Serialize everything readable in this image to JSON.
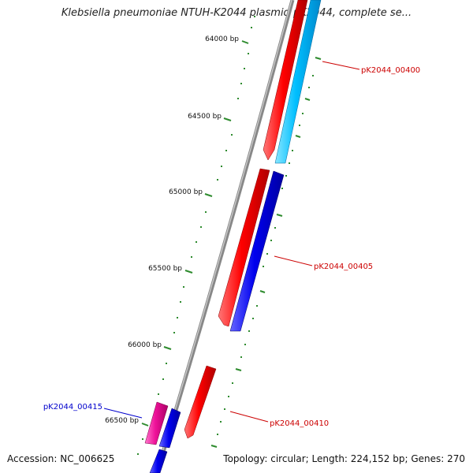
{
  "header": {
    "title": "Klebsiella pneumoniae NTUH-K2044 plasmid pK2044, complete se..."
  },
  "footer": {
    "accession": "Accession: NC_006625",
    "summary": "Topology: circular; Length: 224,152 bp; Genes: 270"
  },
  "map": {
    "backbone_color": "#888888",
    "tick_color": "#2e8b2e",
    "ticks": [
      {
        "label": "64000 bp"
      },
      {
        "label": "64500 bp"
      },
      {
        "label": "65000 bp"
      },
      {
        "label": "65500 bp"
      },
      {
        "label": "66000 bp"
      },
      {
        "label": "66500 bp"
      }
    ],
    "gene_labels": [
      {
        "text": "pK2044_00400",
        "color": "#cc0000"
      },
      {
        "text": "pK2044_00405",
        "color": "#cc0000"
      },
      {
        "text": "pK2044_00410",
        "color": "#cc0000"
      },
      {
        "text": "pK2044_00415",
        "color": "#0000cc"
      }
    ],
    "feature_colors": {
      "red": "#ff0000",
      "blue": "#0000ee",
      "light_blue": "#00bfff",
      "magenta": "#ee1199"
    }
  }
}
